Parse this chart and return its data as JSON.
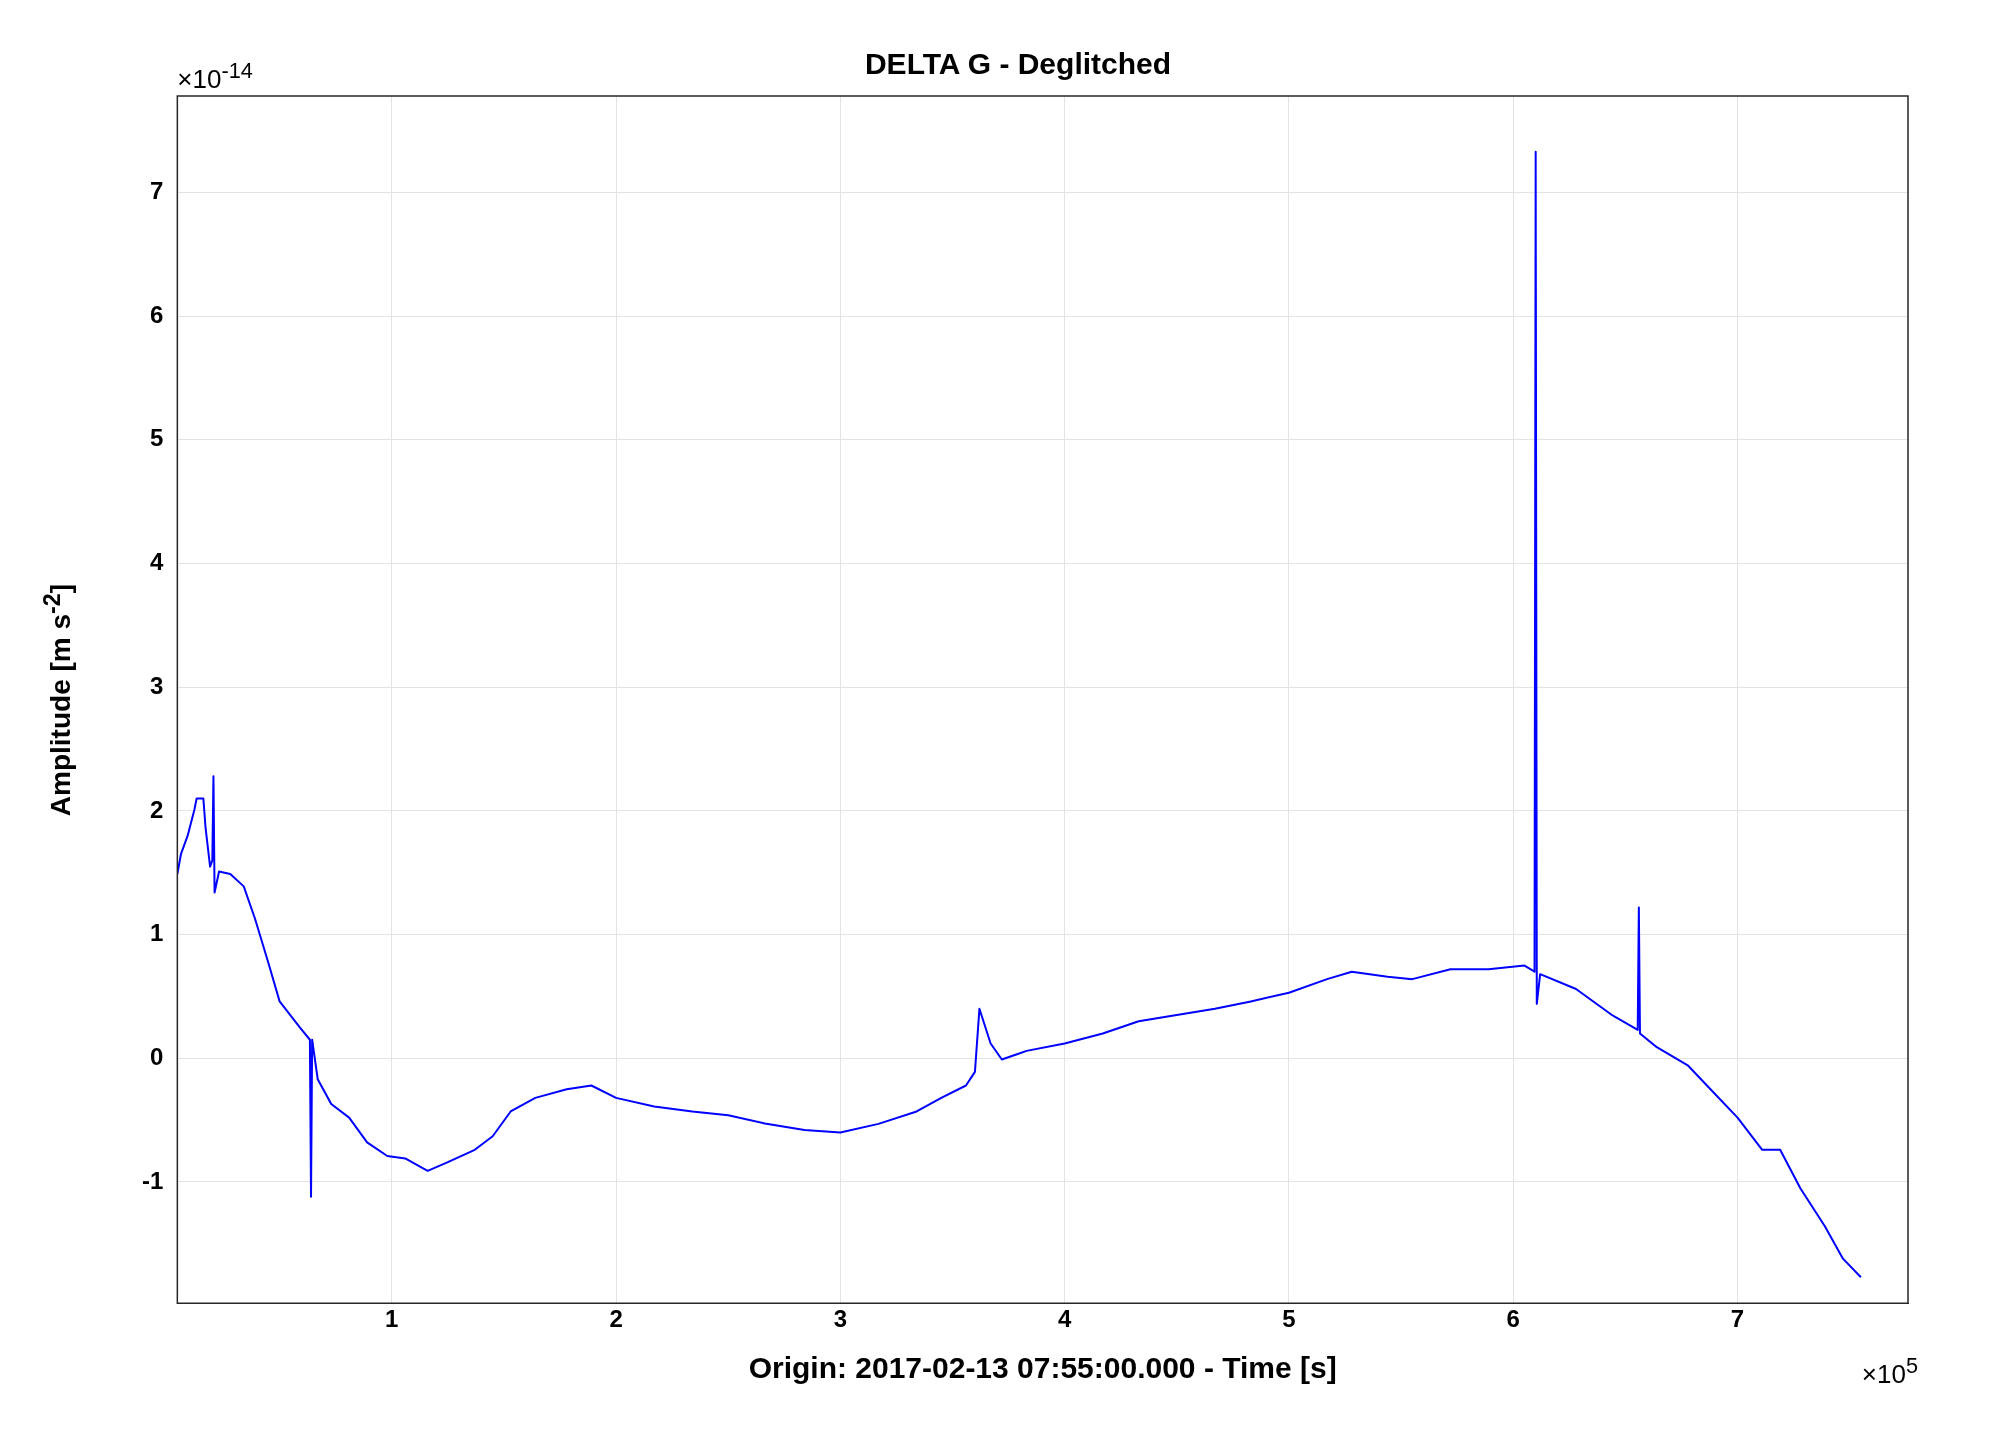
{
  "chart_data": {
    "type": "line",
    "title": "DELTA G - Deglitched",
    "xlabel": "Origin: 2017-02-13 07:55:00.000 - Time  [s]",
    "ylabel": "Amplitude  [m s$^{-2}$]",
    "annotations": [
      "×10$^{-14}$",
      "×10$^{5}$"
    ],
    "x": [
      0.044,
      0.06,
      0.09,
      0.12,
      0.13,
      0.16,
      0.17,
      0.19,
      0.2,
      0.205,
      0.21,
      0.23,
      0.28,
      0.34,
      0.39,
      0.45,
      0.5,
      0.59,
      0.635,
      0.64,
      0.645,
      0.67,
      0.73,
      0.81,
      0.89,
      0.98,
      1.06,
      1.16,
      1.25,
      1.37,
      1.45,
      1.53,
      1.64,
      1.78,
      1.89,
      2.0,
      2.17,
      2.34,
      2.5,
      2.67,
      2.84,
      3.0,
      3.17,
      3.34,
      3.45,
      3.56,
      3.6,
      3.62,
      3.67,
      3.72,
      3.83,
      4.0,
      4.17,
      4.33,
      4.5,
      4.67,
      4.83,
      5.0,
      5.17,
      5.28,
      5.44,
      5.55,
      5.72,
      5.89,
      6.05,
      6.095,
      6.1,
      6.105,
      6.12,
      6.28,
      6.44,
      6.555,
      6.56,
      6.565,
      6.64,
      6.78,
      6.89,
      7.0,
      7.11,
      7.19,
      7.28,
      7.39,
      7.47,
      7.55
    ],
    "series": [
      {
        "color": "#0000ff",
        "values": [
          1.49,
          1.65,
          1.8,
          2.01,
          2.1,
          2.1,
          1.86,
          1.55,
          1.6,
          2.28,
          1.34,
          1.51,
          1.49,
          1.39,
          1.13,
          0.77,
          0.46,
          0.25,
          0.15,
          -1.12,
          0.15,
          -0.17,
          -0.37,
          -0.48,
          -0.68,
          -0.79,
          -0.81,
          -0.91,
          -0.84,
          -0.74,
          -0.63,
          -0.43,
          -0.32,
          -0.25,
          -0.22,
          -0.32,
          -0.39,
          -0.43,
          -0.46,
          -0.53,
          -0.58,
          -0.6,
          -0.53,
          -0.43,
          -0.32,
          -0.22,
          -0.11,
          0.4,
          0.12,
          -0.01,
          0.06,
          0.12,
          0.2,
          0.3,
          0.35,
          0.4,
          0.46,
          0.53,
          0.64,
          0.7,
          0.66,
          0.64,
          0.72,
          0.72,
          0.75,
          0.7,
          7.33,
          0.44,
          0.68,
          0.56,
          0.35,
          0.23,
          1.22,
          0.2,
          0.09,
          -0.06,
          -0.27,
          -0.48,
          -0.74,
          -0.74,
          -1.05,
          -1.36,
          -1.62,
          -1.77
        ]
      }
    ],
    "xlim": [
      0.044,
      7.76
    ],
    "ylim": [
      -1.98,
      7.78
    ],
    "xticks": [
      1,
      2,
      3,
      4,
      5,
      6,
      7
    ],
    "yticks": [
      -1,
      0,
      1,
      2,
      3,
      4,
      5,
      6,
      7
    ],
    "grid": true,
    "marker": "none",
    "line_style": "solid"
  }
}
